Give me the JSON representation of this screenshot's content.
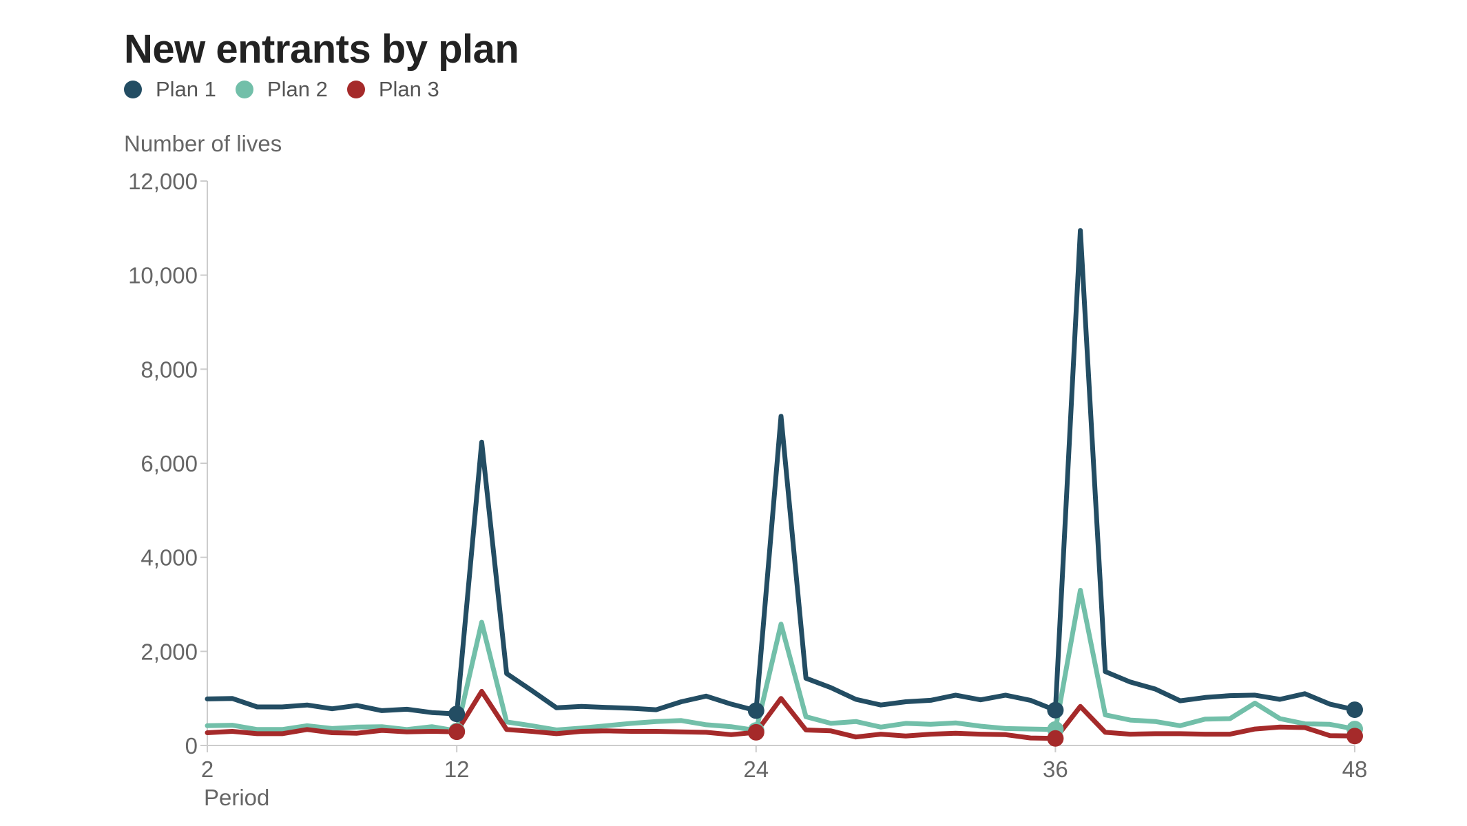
{
  "chart_data": {
    "type": "line",
    "title": "New entrants by plan",
    "ylabel": "Number of lives",
    "xlabel": "Period",
    "ylim": [
      0,
      12000
    ],
    "xlim": [
      2,
      48
    ],
    "yticks": [
      0,
      2000,
      4000,
      6000,
      8000,
      10000,
      12000
    ],
    "ytick_labels": [
      "0",
      "2,000",
      "4,000",
      "6,000",
      "8,000",
      "10,000",
      "12,000"
    ],
    "xticks": [
      2,
      12,
      24,
      36,
      48
    ],
    "xtick_labels": [
      "2",
      "12",
      "24",
      "36",
      "48"
    ],
    "grid": false,
    "legend_position": "top-left",
    "marker_x": [
      12,
      24,
      36,
      48
    ],
    "x": [
      2,
      3,
      4,
      5,
      6,
      7,
      8,
      9,
      10,
      11,
      12,
      13,
      14,
      15,
      16,
      17,
      18,
      19,
      20,
      21,
      22,
      23,
      24,
      25,
      26,
      27,
      28,
      29,
      30,
      31,
      32,
      33,
      34,
      35,
      36,
      37,
      38,
      39,
      40,
      41,
      42,
      43,
      44,
      45,
      46,
      47,
      48
    ],
    "series": [
      {
        "name": "Plan 1",
        "color": "#234d63",
        "values": [
          990,
          1000,
          820,
          820,
          860,
          780,
          850,
          740,
          770,
          700,
          670,
          6450,
          1530,
          1170,
          800,
          830,
          810,
          790,
          760,
          930,
          1050,
          880,
          740,
          7000,
          1430,
          1230,
          980,
          860,
          930,
          960,
          1070,
          970,
          1070,
          960,
          750,
          10950,
          1570,
          1350,
          1200,
          950,
          1020,
          1060,
          1070,
          980,
          1100,
          880,
          760
        ]
      },
      {
        "name": "Plan 2",
        "color": "#72bfa9",
        "values": [
          420,
          430,
          340,
          340,
          420,
          360,
          390,
          400,
          340,
          400,
          310,
          2620,
          500,
          420,
          330,
          370,
          420,
          470,
          510,
          530,
          440,
          400,
          320,
          2580,
          610,
          470,
          510,
          390,
          470,
          450,
          480,
          410,
          360,
          350,
          340,
          3300,
          650,
          540,
          510,
          420,
          560,
          570,
          900,
          570,
          460,
          450,
          350
        ]
      },
      {
        "name": "Plan 3",
        "color": "#a52a2a",
        "values": [
          270,
          300,
          250,
          250,
          340,
          270,
          260,
          320,
          290,
          300,
          290,
          1150,
          340,
          300,
          250,
          300,
          310,
          300,
          300,
          290,
          280,
          230,
          280,
          1000,
          330,
          310,
          180,
          240,
          200,
          240,
          260,
          240,
          230,
          160,
          150,
          830,
          280,
          240,
          250,
          250,
          240,
          240,
          350,
          390,
          380,
          210,
          200
        ]
      }
    ]
  }
}
